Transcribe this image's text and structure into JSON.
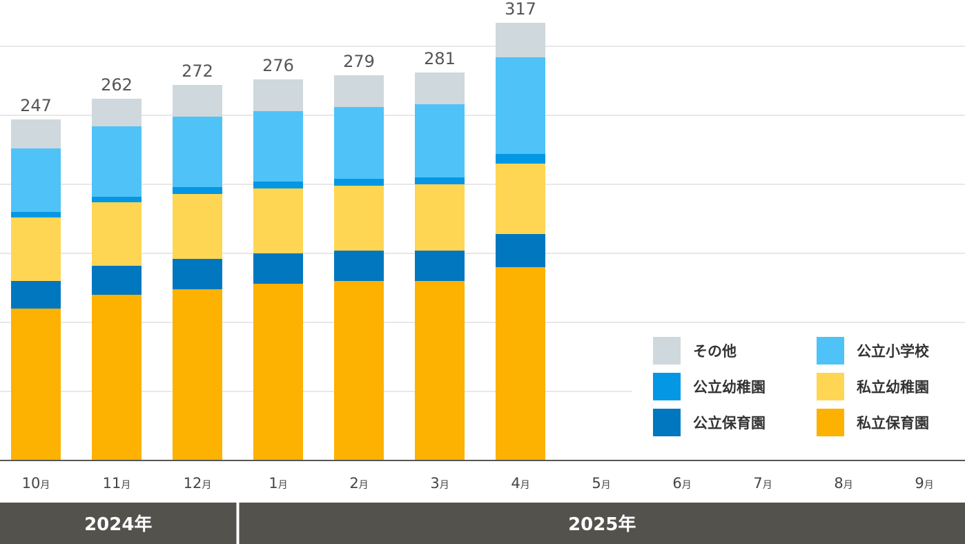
{
  "chart_data": {
    "type": "bar",
    "stacked": true,
    "categories": [
      "10月",
      "11月",
      "12月",
      "1月",
      "2月",
      "3月",
      "4月",
      "5月",
      "6月",
      "7月",
      "8月",
      "9月"
    ],
    "month_numbers": [
      "10",
      "11",
      "12",
      "1",
      "2",
      "3",
      "4",
      "5",
      "6",
      "7",
      "8",
      "9"
    ],
    "month_unit": "月",
    "year_groups": [
      {
        "label": "2024年",
        "months": [
          "10",
          "11",
          "12"
        ]
      },
      {
        "label": "2025年",
        "months": [
          "1",
          "2",
          "3",
          "4",
          "5",
          "6",
          "7",
          "8",
          "9"
        ]
      }
    ],
    "totals": [
      247,
      262,
      272,
      276,
      279,
      281,
      317,
      null,
      null,
      null,
      null,
      null
    ],
    "ylim": [
      0,
      335
    ],
    "grid": true,
    "legend_position": "bottom-right",
    "series": [
      {
        "name": "私立保育園",
        "color": "#FDB100",
        "values": [
          110,
          120,
          124,
          128,
          130,
          130,
          140,
          null,
          null,
          null,
          null,
          null
        ]
      },
      {
        "name": "公立保育園",
        "color": "#0177BF",
        "values": [
          20,
          21,
          22,
          22,
          22,
          22,
          24,
          null,
          null,
          null,
          null,
          null
        ]
      },
      {
        "name": "私立幼稚園",
        "color": "#FFD654",
        "values": [
          46,
          46,
          47,
          47,
          47,
          48,
          51,
          null,
          null,
          null,
          null,
          null
        ]
      },
      {
        "name": "公立幼稚園",
        "color": "#0497E4",
        "values": [
          4,
          4,
          5,
          5,
          5,
          5,
          7,
          null,
          null,
          null,
          null,
          null
        ]
      },
      {
        "name": "公立小学校",
        "color": "#4FC3F7",
        "values": [
          46,
          51,
          51,
          51,
          52,
          53,
          70,
          null,
          null,
          null,
          null,
          null
        ]
      },
      {
        "name": "その他",
        "color": "#CFD8DC",
        "values": [
          21,
          20,
          23,
          23,
          23,
          23,
          25,
          null,
          null,
          null,
          null,
          null
        ]
      }
    ],
    "legend_order": [
      "その他",
      "公立小学校",
      "公立幼稚園",
      "私立幼稚園",
      "公立保育園",
      "私立保育園"
    ],
    "colors": {
      "grid": "#E0E0E0",
      "axis": "#555555",
      "year_band": "#54524D"
    }
  }
}
